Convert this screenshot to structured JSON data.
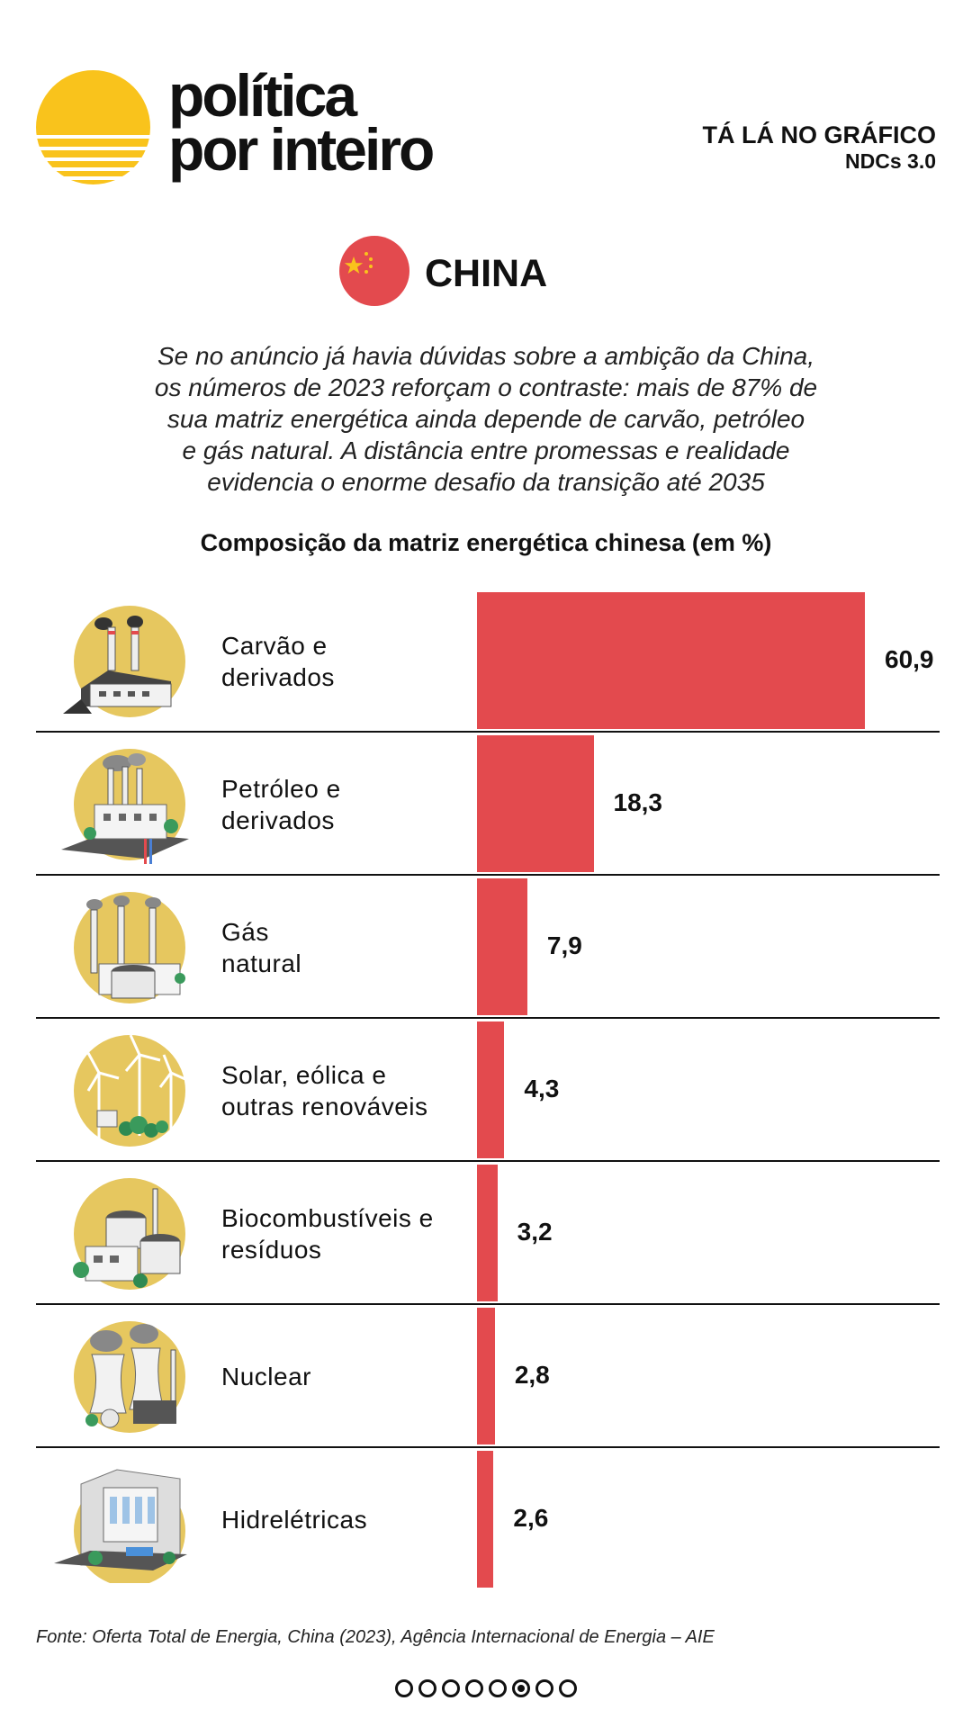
{
  "brand": {
    "line1": "política",
    "line2": "por inteiro"
  },
  "header": {
    "series": "TÁ LÁ NO GRÁFICO",
    "subtitle": "NDCs 3.0"
  },
  "country": {
    "name": "CHINA",
    "icon": "china-flag-icon"
  },
  "intro": [
    "Se no anúncio já havia dúvidas sobre a ambição da China,",
    "os números de 2023 reforçam o contraste: mais de 87% de",
    "sua matriz energética ainda depende de carvão, petróleo",
    "e gás natural. A distância entre promessas e realidade",
    "evidencia o enorme desafio da transição até 2035"
  ],
  "colors": {
    "bar": "#e34a4e",
    "circle": "#e6c75f",
    "logo": "#f9c31c",
    "flag": "#e34a4e",
    "star": "#f9c31c"
  },
  "chart_data": {
    "type": "bar",
    "orientation": "horizontal",
    "title": "Composição da matriz energética chinesa (em %)",
    "unit": "%",
    "categories": [
      "Carvão e derivados",
      "Petróleo e derivados",
      "Gás natural",
      "Solar, eólica e outras renováveis",
      "Biocombustíveis e resíduos",
      "Nuclear",
      "Hidrelétricas"
    ],
    "values": [
      60.9,
      18.3,
      7.9,
      4.3,
      3.2,
      2.8,
      2.6
    ],
    "labels": [
      "60,9",
      "18,3",
      "7,9",
      "4,3",
      "3,2",
      "2,8",
      "2,6"
    ],
    "xlim": [
      0,
      60.9
    ],
    "rows": [
      {
        "label_lines": [
          "Carvão e",
          "derivados"
        ],
        "icon": "coal-plant-icon"
      },
      {
        "label_lines": [
          "Petróleo e",
          "derivados"
        ],
        "icon": "oil-refinery-icon"
      },
      {
        "label_lines": [
          "Gás",
          "natural"
        ],
        "icon": "gas-plant-icon"
      },
      {
        "label_lines": [
          "Solar, eólica e",
          "outras renováveis"
        ],
        "icon": "wind-turbines-icon"
      },
      {
        "label_lines": [
          "Biocombustíveis e",
          "resíduos"
        ],
        "icon": "biofuel-plant-icon"
      },
      {
        "label_lines": [
          "Nuclear"
        ],
        "icon": "nuclear-plant-icon"
      },
      {
        "label_lines": [
          "Hidrelétricas"
        ],
        "icon": "hydro-dam-icon"
      }
    ]
  },
  "source": "Fonte: Oferta Total de Energia, China (2023), Agência Internacional de Energia – AIE",
  "pagination": {
    "total": 8,
    "current": 6
  }
}
